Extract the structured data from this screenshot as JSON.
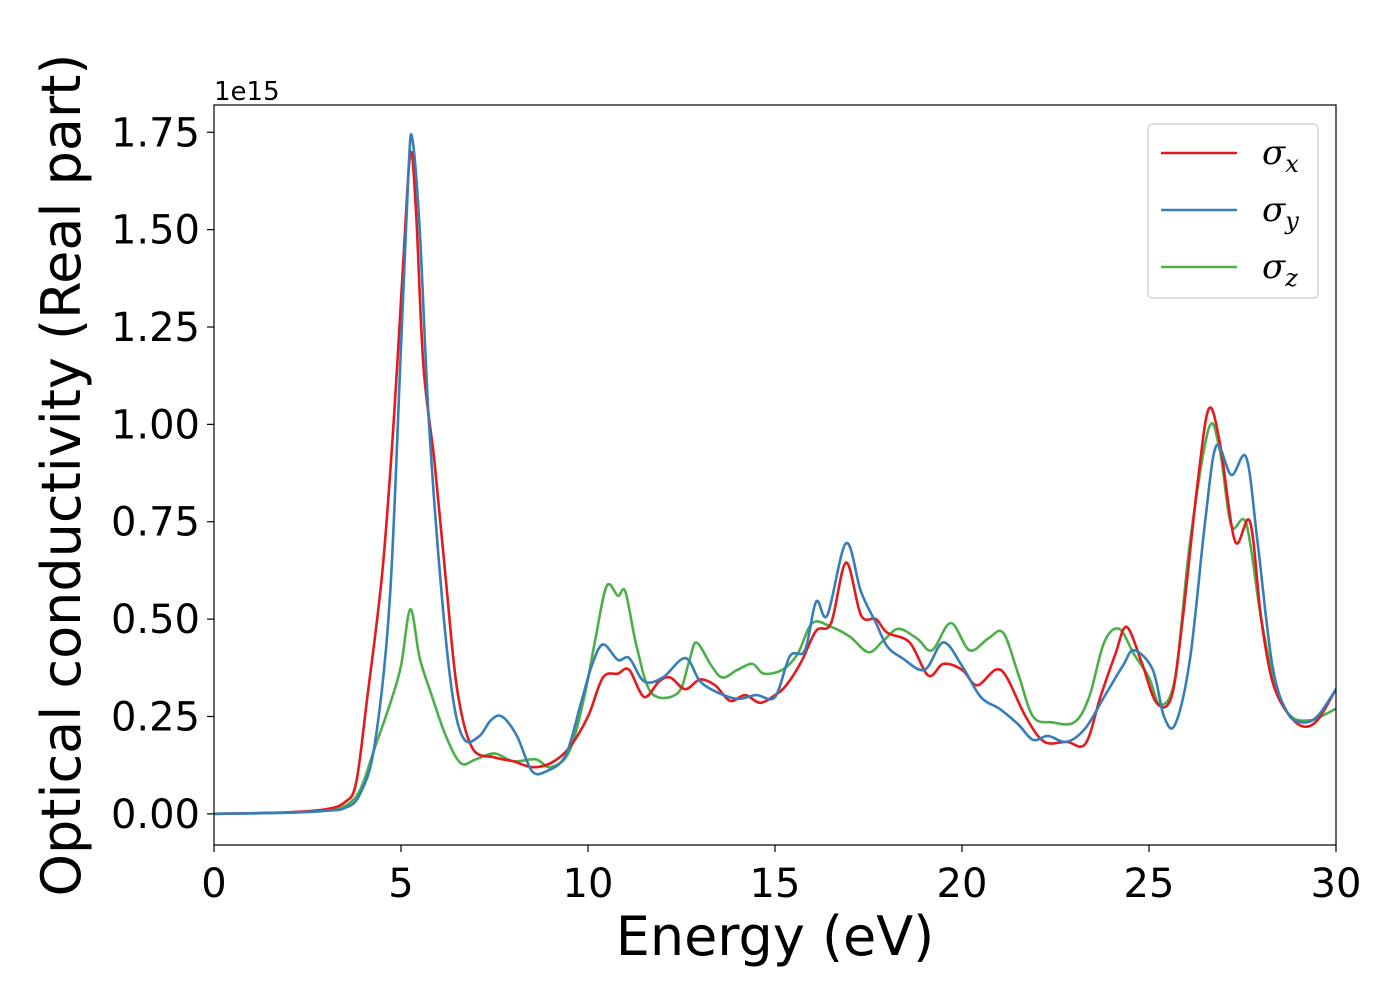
{
  "chart_data": {
    "type": "line",
    "title": "",
    "xlabel": "Energy (eV)",
    "ylabel": "Optical conductivity (Real part)",
    "y_offset_label": "1e15",
    "xlim": [
      0,
      30
    ],
    "ylim": [
      -0.08,
      1.82
    ],
    "x_ticks": [
      0,
      5,
      10,
      15,
      20,
      25,
      30
    ],
    "x_tick_labels": [
      "0",
      "5",
      "10",
      "15",
      "20",
      "25",
      "30"
    ],
    "y_ticks": [
      0.0,
      0.25,
      0.5,
      0.75,
      1.0,
      1.25,
      1.5,
      1.75
    ],
    "y_tick_labels": [
      "0.00",
      "0.25",
      "0.50",
      "0.75",
      "1.00",
      "1.25",
      "1.50",
      "1.75"
    ],
    "grid": false,
    "legend_position": "top-right",
    "series": [
      {
        "name": "σx",
        "symbol": "σ",
        "subscript": "x",
        "color": "#e41a1c",
        "points": [
          [
            0,
            0
          ],
          [
            2,
            0.004
          ],
          [
            3,
            0.012
          ],
          [
            3.5,
            0.03
          ],
          [
            3.8,
            0.08
          ],
          [
            4.1,
            0.3
          ],
          [
            4.5,
            0.62
          ],
          [
            4.8,
            1.0
          ],
          [
            5.05,
            1.4
          ],
          [
            5.25,
            1.695
          ],
          [
            5.4,
            1.55
          ],
          [
            5.6,
            1.15
          ],
          [
            5.9,
            0.9
          ],
          [
            6.2,
            0.6
          ],
          [
            6.5,
            0.32
          ],
          [
            6.9,
            0.17
          ],
          [
            7.5,
            0.145
          ],
          [
            8,
            0.135
          ],
          [
            8.5,
            0.12
          ],
          [
            9,
            0.13
          ],
          [
            9.5,
            0.17
          ],
          [
            10,
            0.25
          ],
          [
            10.4,
            0.35
          ],
          [
            10.8,
            0.36
          ],
          [
            11.1,
            0.37
          ],
          [
            11.5,
            0.3
          ],
          [
            11.9,
            0.34
          ],
          [
            12.2,
            0.35
          ],
          [
            12.6,
            0.32
          ],
          [
            13,
            0.345
          ],
          [
            13.4,
            0.33
          ],
          [
            13.8,
            0.29
          ],
          [
            14.2,
            0.305
          ],
          [
            14.6,
            0.285
          ],
          [
            15,
            0.305
          ],
          [
            15.3,
            0.33
          ],
          [
            15.7,
            0.39
          ],
          [
            16.1,
            0.47
          ],
          [
            16.5,
            0.49
          ],
          [
            16.9,
            0.645
          ],
          [
            17.3,
            0.51
          ],
          [
            17.7,
            0.5
          ],
          [
            18,
            0.465
          ],
          [
            18.6,
            0.44
          ],
          [
            19.1,
            0.355
          ],
          [
            19.5,
            0.385
          ],
          [
            20,
            0.37
          ],
          [
            20.4,
            0.33
          ],
          [
            20.9,
            0.37
          ],
          [
            21.2,
            0.35
          ],
          [
            21.7,
            0.25
          ],
          [
            22.2,
            0.185
          ],
          [
            22.8,
            0.185
          ],
          [
            23.3,
            0.18
          ],
          [
            23.7,
            0.3
          ],
          [
            24.1,
            0.41
          ],
          [
            24.4,
            0.48
          ],
          [
            24.8,
            0.39
          ],
          [
            25.2,
            0.285
          ],
          [
            25.6,
            0.3
          ],
          [
            25.9,
            0.5
          ],
          [
            26.3,
            0.85
          ],
          [
            26.6,
            1.04
          ],
          [
            26.9,
            0.95
          ],
          [
            27.3,
            0.7
          ],
          [
            27.7,
            0.75
          ],
          [
            28,
            0.5
          ],
          [
            28.3,
            0.34
          ],
          [
            28.7,
            0.26
          ],
          [
            29.1,
            0.225
          ],
          [
            29.5,
            0.24
          ],
          [
            30,
            0.32
          ]
        ]
      },
      {
        "name": "σy",
        "symbol": "σ",
        "subscript": "y",
        "color": "#377eb8",
        "points": [
          [
            0,
            0
          ],
          [
            2,
            0.003
          ],
          [
            3,
            0.008
          ],
          [
            3.5,
            0.015
          ],
          [
            3.9,
            0.05
          ],
          [
            4.3,
            0.18
          ],
          [
            4.7,
            0.55
          ],
          [
            5,
            1.2
          ],
          [
            5.2,
            1.65
          ],
          [
            5.3,
            1.735
          ],
          [
            5.5,
            1.5
          ],
          [
            5.75,
            1.0
          ],
          [
            6.1,
            0.55
          ],
          [
            6.4,
            0.29
          ],
          [
            6.7,
            0.19
          ],
          [
            7.1,
            0.2
          ],
          [
            7.4,
            0.24
          ],
          [
            7.7,
            0.25
          ],
          [
            8.1,
            0.2
          ],
          [
            8.5,
            0.11
          ],
          [
            8.9,
            0.11
          ],
          [
            9.4,
            0.15
          ],
          [
            9.8,
            0.28
          ],
          [
            10.1,
            0.38
          ],
          [
            10.4,
            0.435
          ],
          [
            10.8,
            0.395
          ],
          [
            11.1,
            0.4
          ],
          [
            11.5,
            0.34
          ],
          [
            12,
            0.35
          ],
          [
            12.6,
            0.4
          ],
          [
            13,
            0.34
          ],
          [
            13.5,
            0.31
          ],
          [
            14,
            0.295
          ],
          [
            14.5,
            0.305
          ],
          [
            15,
            0.3
          ],
          [
            15.4,
            0.405
          ],
          [
            15.8,
            0.42
          ],
          [
            16.1,
            0.545
          ],
          [
            16.4,
            0.51
          ],
          [
            16.9,
            0.695
          ],
          [
            17.3,
            0.57
          ],
          [
            17.7,
            0.49
          ],
          [
            18,
            0.43
          ],
          [
            18.4,
            0.4
          ],
          [
            19,
            0.37
          ],
          [
            19.5,
            0.44
          ],
          [
            20,
            0.38
          ],
          [
            20.5,
            0.3
          ],
          [
            21,
            0.27
          ],
          [
            21.5,
            0.23
          ],
          [
            21.9,
            0.19
          ],
          [
            22.3,
            0.2
          ],
          [
            22.8,
            0.185
          ],
          [
            23.3,
            0.22
          ],
          [
            23.8,
            0.3
          ],
          [
            24.3,
            0.38
          ],
          [
            24.6,
            0.42
          ],
          [
            25.1,
            0.37
          ],
          [
            25.4,
            0.25
          ],
          [
            25.7,
            0.23
          ],
          [
            26.1,
            0.4
          ],
          [
            26.5,
            0.75
          ],
          [
            26.8,
            0.945
          ],
          [
            27.2,
            0.87
          ],
          [
            27.6,
            0.915
          ],
          [
            27.9,
            0.7
          ],
          [
            28.3,
            0.38
          ],
          [
            28.7,
            0.26
          ],
          [
            29.1,
            0.235
          ],
          [
            29.5,
            0.25
          ],
          [
            30,
            0.32
          ]
        ]
      },
      {
        "name": "σz",
        "symbol": "σ",
        "subscript": "z",
        "color": "#4daf4a",
        "points": [
          [
            0,
            0
          ],
          [
            2,
            0.003
          ],
          [
            3,
            0.008
          ],
          [
            3.5,
            0.02
          ],
          [
            3.9,
            0.06
          ],
          [
            4.3,
            0.17
          ],
          [
            4.7,
            0.28
          ],
          [
            5,
            0.38
          ],
          [
            5.25,
            0.525
          ],
          [
            5.5,
            0.4
          ],
          [
            5.8,
            0.31
          ],
          [
            6.2,
            0.2
          ],
          [
            6.6,
            0.13
          ],
          [
            7,
            0.14
          ],
          [
            7.5,
            0.155
          ],
          [
            8,
            0.135
          ],
          [
            8.6,
            0.14
          ],
          [
            9,
            0.12
          ],
          [
            9.5,
            0.16
          ],
          [
            9.9,
            0.3
          ],
          [
            10.2,
            0.45
          ],
          [
            10.5,
            0.585
          ],
          [
            10.8,
            0.56
          ],
          [
            11,
            0.57
          ],
          [
            11.3,
            0.43
          ],
          [
            11.7,
            0.31
          ],
          [
            12.4,
            0.31
          ],
          [
            12.7,
            0.39
          ],
          [
            12.9,
            0.44
          ],
          [
            13.3,
            0.38
          ],
          [
            13.6,
            0.35
          ],
          [
            14,
            0.37
          ],
          [
            14.4,
            0.385
          ],
          [
            14.7,
            0.36
          ],
          [
            15.2,
            0.37
          ],
          [
            15.6,
            0.41
          ],
          [
            16,
            0.49
          ],
          [
            16.5,
            0.48
          ],
          [
            17,
            0.455
          ],
          [
            17.5,
            0.415
          ],
          [
            17.9,
            0.445
          ],
          [
            18.3,
            0.475
          ],
          [
            18.8,
            0.45
          ],
          [
            19.2,
            0.42
          ],
          [
            19.7,
            0.49
          ],
          [
            20.2,
            0.42
          ],
          [
            20.7,
            0.45
          ],
          [
            21.1,
            0.465
          ],
          [
            21.5,
            0.36
          ],
          [
            21.9,
            0.25
          ],
          [
            22.4,
            0.235
          ],
          [
            23,
            0.235
          ],
          [
            23.4,
            0.3
          ],
          [
            23.8,
            0.44
          ],
          [
            24.2,
            0.475
          ],
          [
            24.6,
            0.41
          ],
          [
            25,
            0.35
          ],
          [
            25.3,
            0.28
          ],
          [
            25.7,
            0.35
          ],
          [
            26.1,
            0.7
          ],
          [
            26.6,
            0.99
          ],
          [
            26.9,
            0.93
          ],
          [
            27.2,
            0.74
          ],
          [
            27.6,
            0.745
          ],
          [
            28,
            0.5
          ],
          [
            28.4,
            0.32
          ],
          [
            28.8,
            0.25
          ],
          [
            29.3,
            0.24
          ],
          [
            29.7,
            0.255
          ],
          [
            30,
            0.27
          ]
        ]
      }
    ]
  }
}
